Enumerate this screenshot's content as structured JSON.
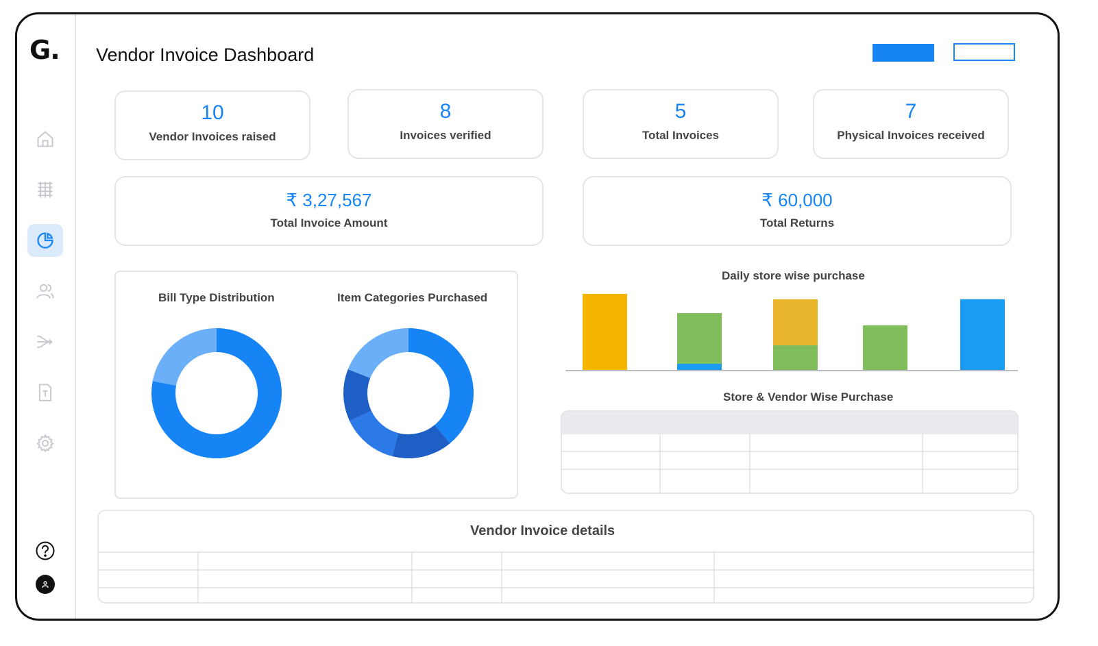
{
  "app": {
    "logo_text": "G.",
    "title": "Vendor Invoice Dashboard"
  },
  "sidebar": {
    "items": [
      {
        "icon": "home-icon",
        "active": false
      },
      {
        "icon": "grid-icon",
        "active": false
      },
      {
        "icon": "pie-chart-icon",
        "active": true
      },
      {
        "icon": "users-icon",
        "active": false
      },
      {
        "icon": "merge-icon",
        "active": false
      },
      {
        "icon": "document-icon",
        "active": false
      },
      {
        "icon": "gear-icon",
        "active": false
      }
    ],
    "help_icon": "question-icon",
    "avatar_icon": "user-icon"
  },
  "colors": {
    "accent": "#1784f6",
    "yellow": "#f4b400",
    "green": "#80bd5b",
    "blue": "#1a9cf5",
    "gold": "#e8b52c"
  },
  "stats": [
    {
      "value": "10",
      "label": "Vendor Invoices raised"
    },
    {
      "value": "8",
      "label": "Invoices verified"
    },
    {
      "value": "5",
      "label": "Total Invoices"
    },
    {
      "value": "7",
      "label": "Physical Invoices received"
    }
  ],
  "totals": [
    {
      "value": "₹ 3,27,567",
      "label": "Total Invoice Amount"
    },
    {
      "value": "₹ 60,000",
      "label": "Total Returns"
    }
  ],
  "charts": {
    "bill_type_title": "Bill Type Distribution",
    "item_categories_title": "Item Categories Purchased",
    "daily_store_title": "Daily store wise purchase",
    "store_vendor_title": "Store & Vendor Wise Purchase"
  },
  "chart_data": [
    {
      "type": "pie",
      "title": "Bill Type Distribution",
      "values": [
        78,
        22
      ],
      "colors": [
        "#1784f6",
        "#6aaff7"
      ]
    },
    {
      "type": "pie",
      "title": "Item Categories Purchased",
      "values": [
        39,
        15,
        14,
        13,
        19
      ],
      "colors": [
        "#1784f6",
        "#1d5fc4",
        "#2b7ae8",
        "#1d5fc4",
        "#6aaff7"
      ]
    },
    {
      "type": "bar",
      "title": "Daily store wise purchase",
      "categories": [
        "",
        "",
        "",
        "",
        ""
      ],
      "stacks": [
        [
          {
            "value": 100,
            "color": "#f4b400"
          }
        ],
        [
          {
            "value": 9,
            "color": "#1a9cf5"
          },
          {
            "value": 66,
            "color": "#80bd5b"
          }
        ],
        [
          {
            "value": 33,
            "color": "#80bd5b"
          },
          {
            "value": 60,
            "color": "#e8b52c"
          }
        ],
        [
          {
            "value": 59,
            "color": "#80bd5b"
          }
        ],
        [
          {
            "value": 93,
            "color": "#1a9cf5"
          }
        ]
      ],
      "ylim": [
        0,
        100
      ]
    }
  ],
  "tables": {
    "store_vendor_rows": 3,
    "invoice_details_title": "Vendor Invoice details",
    "invoice_details_rows": 3
  }
}
